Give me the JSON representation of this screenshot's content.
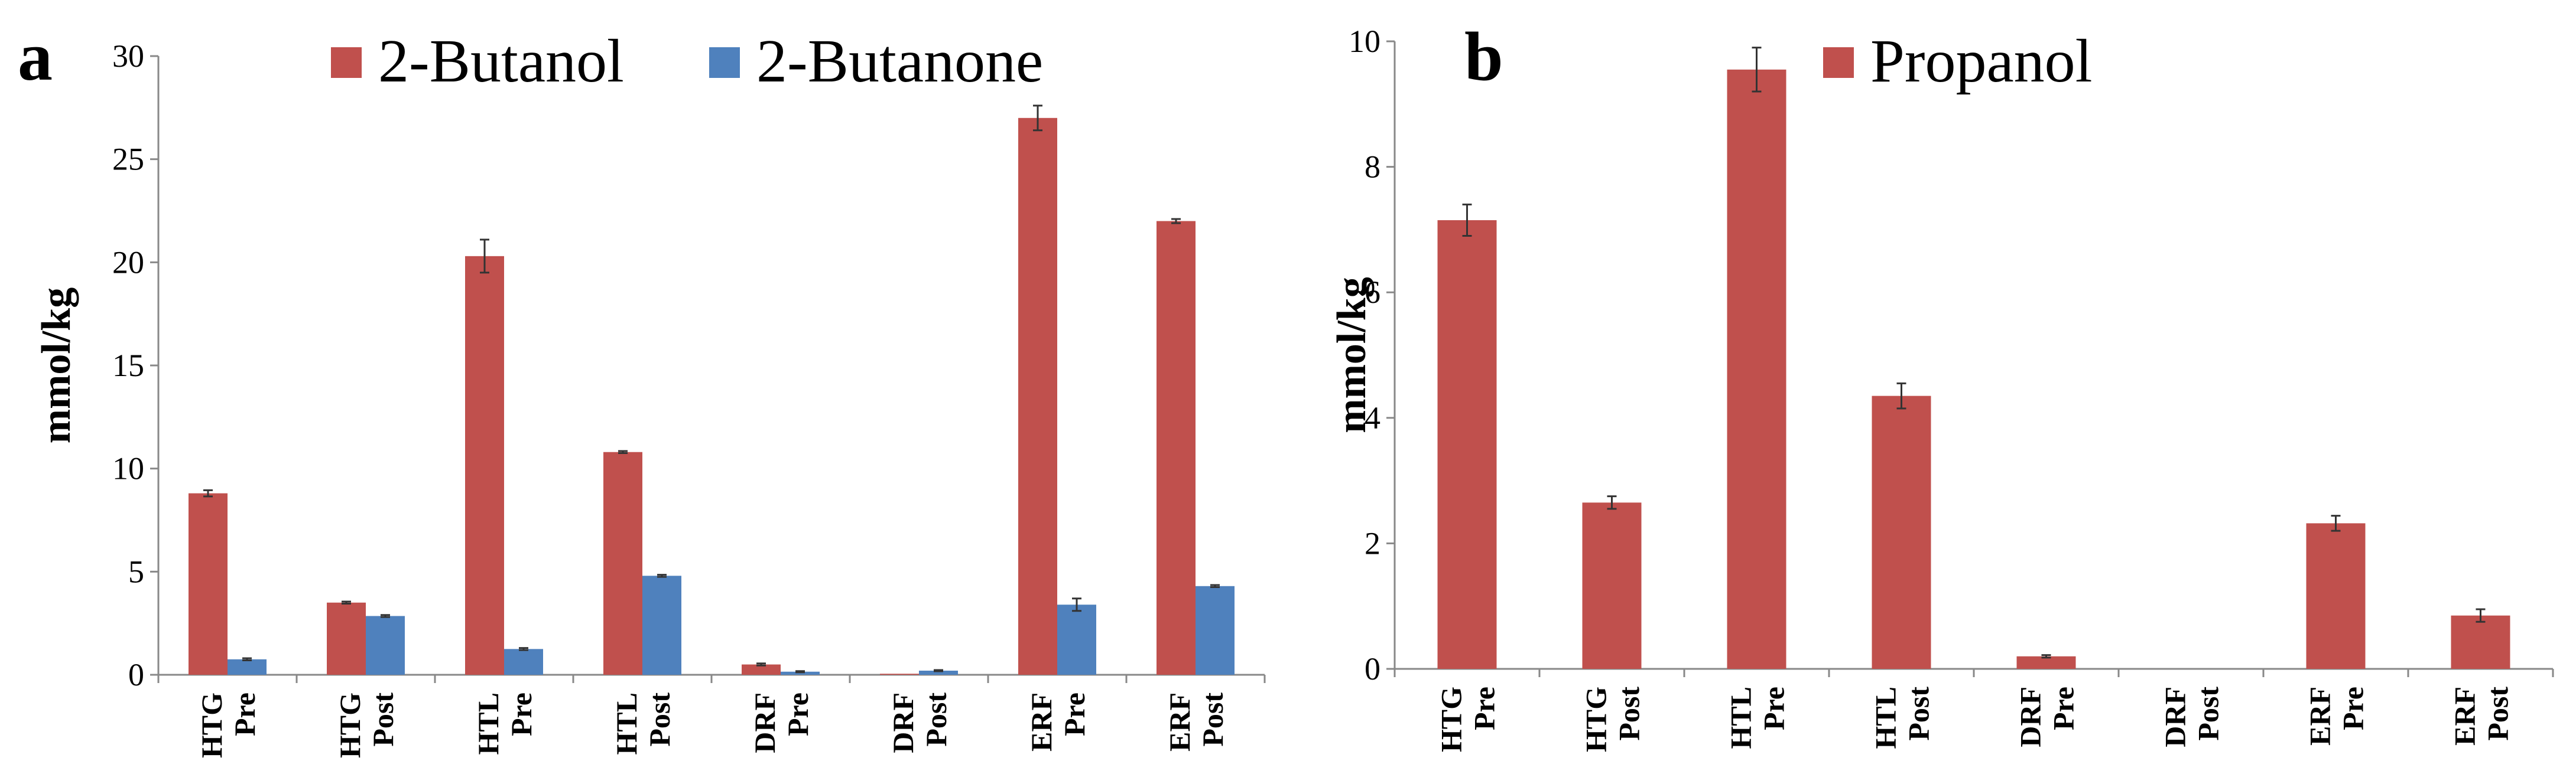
{
  "chart_data": [
    {
      "type": "bar",
      "panel": "a",
      "categories": [
        [
          "HTG",
          "Pre"
        ],
        [
          "HTG",
          "Post"
        ],
        [
          "HTL",
          "Pre"
        ],
        [
          "HTL",
          "Post"
        ],
        [
          "DRF",
          "Pre"
        ],
        [
          "DRF",
          "Post"
        ],
        [
          "ERF",
          "Pre"
        ],
        [
          "ERF",
          "Post"
        ]
      ],
      "series": [
        {
          "name": "2-Butanol",
          "color": "#c0504d",
          "values": [
            8.8,
            3.5,
            20.3,
            10.8,
            0.5,
            0.05,
            27.0,
            22.0
          ],
          "errors": [
            0.15,
            0.05,
            0.8,
            0.05,
            0.05,
            0.0,
            0.6,
            0.1
          ]
        },
        {
          "name": "2-Butanone",
          "color": "#4f81bd",
          "values": [
            0.75,
            2.85,
            1.25,
            4.8,
            0.15,
            0.2,
            3.4,
            4.3
          ],
          "errors": [
            0.05,
            0.05,
            0.05,
            0.05,
            0.03,
            0.03,
            0.3,
            0.05
          ]
        }
      ],
      "ylabel": "mmol/kg",
      "ylim": [
        0,
        30
      ],
      "yticks": [
        0,
        5,
        10,
        15,
        20,
        25,
        30
      ],
      "legend": "top"
    },
    {
      "type": "bar",
      "panel": "b",
      "categories": [
        [
          "HTG",
          "Pre"
        ],
        [
          "HTG",
          "Post"
        ],
        [
          "HTL",
          "Pre"
        ],
        [
          "HTL",
          "Post"
        ],
        [
          "DRF",
          "Pre"
        ],
        [
          "DRF",
          "Post"
        ],
        [
          "ERF",
          "Pre"
        ],
        [
          "ERF",
          "Post"
        ]
      ],
      "series": [
        {
          "name": "Propanol",
          "color": "#c0504d",
          "values": [
            7.15,
            2.65,
            9.55,
            4.35,
            0.2,
            0,
            2.32,
            0.85
          ],
          "errors": [
            0.25,
            0.1,
            0.35,
            0.2,
            0.02,
            0,
            0.12,
            0.1
          ]
        }
      ],
      "ylabel": "mmol/kg",
      "ylim": [
        0,
        10
      ],
      "yticks": [
        0,
        2,
        4,
        6,
        8,
        10
      ],
      "legend": "top"
    }
  ]
}
